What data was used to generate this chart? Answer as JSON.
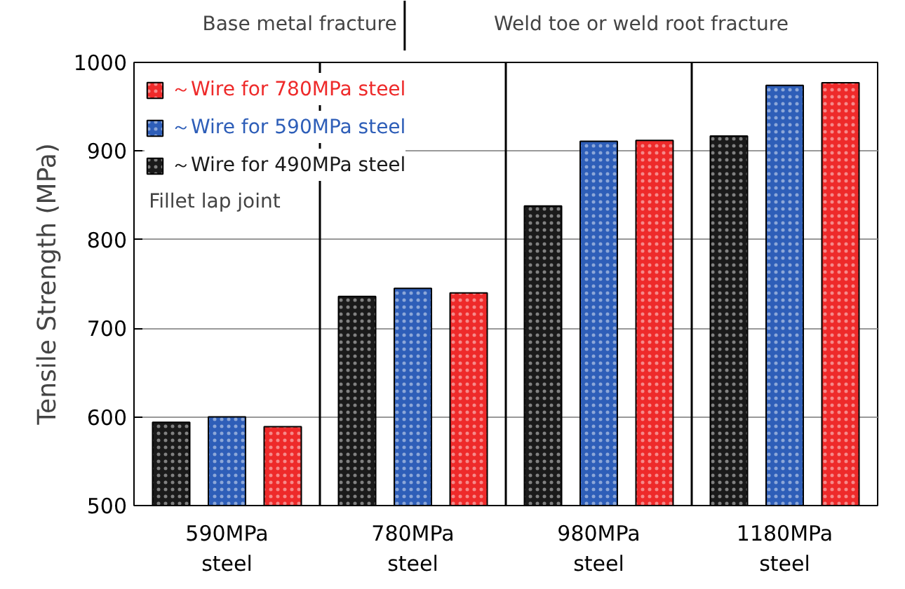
{
  "chart_data": {
    "type": "bar",
    "ylabel": "Tensile Strength (MPa)",
    "categories": [
      "590MPa\nsteel",
      "780MPa\nsteel",
      "980MPa\nsteel",
      "1180MPa\nsteel"
    ],
    "series": [
      {
        "name": "～Wire for 490MPa steel",
        "color": "#1a1a1a",
        "values": [
          594,
          736,
          838,
          917
        ]
      },
      {
        "name": "～Wire for 590MPa steel",
        "color": "#2e5eb8",
        "values": [
          600,
          745,
          911,
          974
        ]
      },
      {
        "name": "～Wire for 780MPa steel",
        "color": "#ee2a2a",
        "values": [
          589,
          740,
          912,
          977
        ]
      }
    ],
    "ylim": [
      500,
      1000
    ],
    "yticks": [
      500,
      600,
      700,
      800,
      900,
      1000
    ],
    "grid": "y",
    "legend": "top left",
    "annotations": [
      "Base metal fracture",
      "Weld toe or weld root fracture",
      "Fillet lap joint"
    ]
  }
}
